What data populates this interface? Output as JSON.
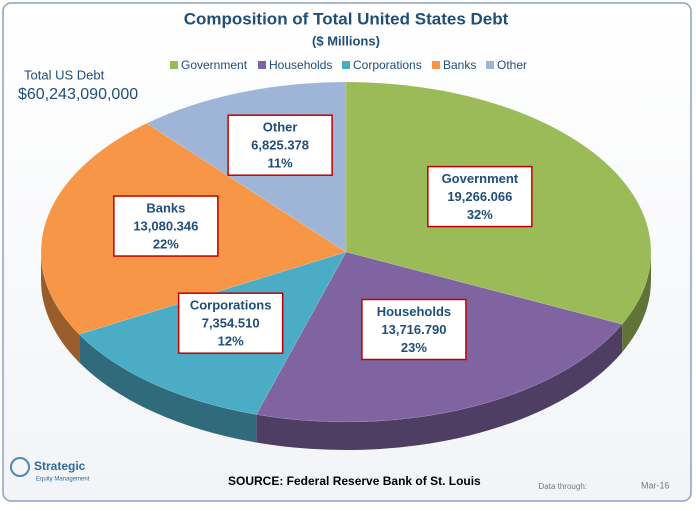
{
  "chart_data": {
    "type": "pie",
    "title": "Composition of Total United States Debt",
    "subtitle": "($ Millions)",
    "categories": [
      "Government",
      "Households",
      "Corporations",
      "Banks",
      "Other"
    ],
    "values": [
      19266.066,
      13716.79,
      7354.51,
      13080.346,
      6825.378
    ],
    "value_labels": [
      "19,266.066",
      "13,716.790",
      "7,354.510",
      "13,080.346",
      "6,825.378"
    ],
    "percent_labels": [
      "32%",
      "23%",
      "12%",
      "22%",
      "11%"
    ],
    "colors": [
      "#9bbb59",
      "#8064a2",
      "#4bacc6",
      "#f79646",
      "#9fb5d8"
    ],
    "legend": "top",
    "annotations": {
      "total_label": "Total US Debt",
      "total_value": "$60,243,090,000",
      "source": "SOURCE:  Federal Reserve Bank of St. Louis",
      "data_through_label": "Data through:",
      "data_through_value": "Mar-16",
      "logo_name": "Strategic",
      "logo_sub": "Equity Management"
    }
  }
}
